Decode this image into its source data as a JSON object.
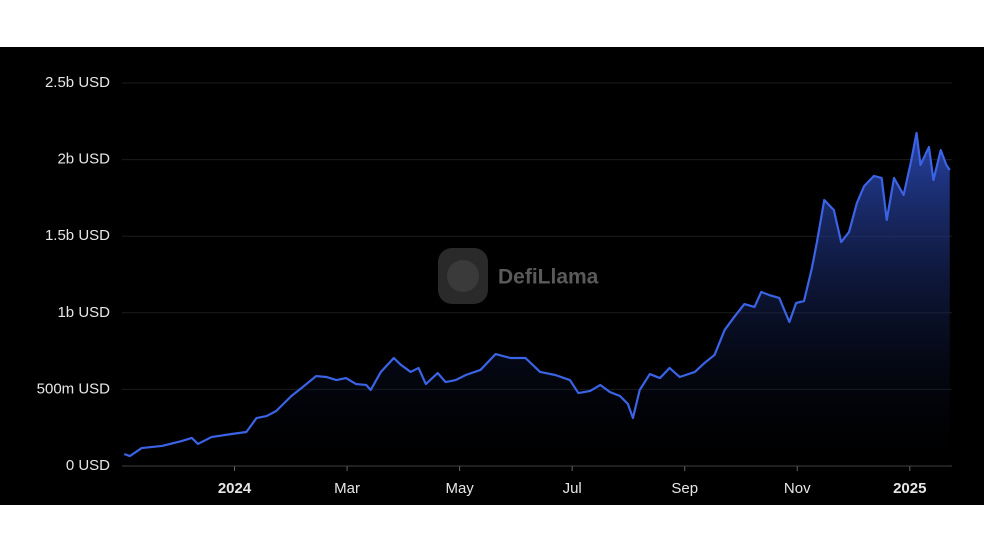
{
  "chart_data": {
    "type": "area",
    "watermark": "DefiLlama",
    "color": "#3b63e6",
    "x": [
      -1.96,
      -1.86,
      -1.65,
      -1.29,
      -0.94,
      -0.76,
      -0.65,
      -0.41,
      -0.05,
      0.21,
      0.39,
      0.57,
      0.74,
      1.01,
      1.19,
      1.45,
      1.63,
      1.81,
      1.98,
      2.16,
      2.34,
      2.42,
      2.6,
      2.83,
      2.96,
      3.13,
      3.27,
      3.4,
      3.61,
      3.75,
      3.93,
      4.11,
      4.37,
      4.64,
      4.9,
      5.17,
      5.43,
      5.7,
      5.96,
      6.11,
      6.32,
      6.5,
      6.67,
      6.85,
      6.99,
      7.08,
      7.2,
      7.38,
      7.56,
      7.73,
      7.91,
      8.18,
      8.35,
      8.53,
      8.71,
      8.88,
      9.06,
      9.24,
      9.36,
      9.5,
      9.68,
      9.86,
      9.98,
      10.12,
      10.26,
      10.35,
      10.48,
      10.65,
      10.78,
      10.92,
      11.06,
      11.19,
      11.36,
      11.5,
      11.59,
      11.72,
      11.89,
      12.02,
      12.12,
      12.19,
      12.34,
      12.42,
      12.55,
      12.65,
      12.71
    ],
    "values": [
      78000000,
      65000000,
      117000000,
      131000000,
      163000000,
      183000000,
      144000000,
      189000000,
      209000000,
      222000000,
      313000000,
      326000000,
      359000000,
      457000000,
      509000000,
      587000000,
      581000000,
      561000000,
      574000000,
      535000000,
      529000000,
      496000000,
      614000000,
      705000000,
      659000000,
      614000000,
      640000000,
      535000000,
      607000000,
      548000000,
      561000000,
      594000000,
      627000000,
      731000000,
      705000000,
      705000000,
      614000000,
      594000000,
      561000000,
      476000000,
      490000000,
      529000000,
      483000000,
      457000000,
      405000000,
      313000000,
      496000000,
      600000000,
      574000000,
      640000000,
      581000000,
      614000000,
      672000000,
      725000000,
      888000000,
      973000000,
      1057000000,
      1038000000,
      1136000000,
      1116000000,
      1097000000,
      940000000,
      1064000000,
      1077000000,
      1292000000,
      1462000000,
      1736000000,
      1671000000,
      1462000000,
      1527000000,
      1717000000,
      1828000000,
      1893000000,
      1880000000,
      1606000000,
      1880000000,
      1769000000,
      1984000000,
      2174000000,
      1965000000,
      2082000000,
      1867000000,
      2062000000,
      1965000000,
      1932000000
    ],
    "xlim": [
      -2,
      12.75
    ],
    "xticks": [
      {
        "value": 0,
        "label": "2024"
      },
      {
        "value": 2,
        "label": "Mar"
      },
      {
        "value": 4,
        "label": "May"
      },
      {
        "value": 6,
        "label": "Jul"
      },
      {
        "value": 8,
        "label": "Sep"
      },
      {
        "value": 10,
        "label": "Nov"
      },
      {
        "value": 12,
        "label": "2025"
      }
    ],
    "ylim": [
      0,
      2500000000
    ],
    "yticks": [
      {
        "value": 0,
        "label": "0 USD"
      },
      {
        "value": 500000000,
        "label": "500m USD"
      },
      {
        "value": 1000000000,
        "label": "1b USD"
      },
      {
        "value": 1500000000,
        "label": "1.5b USD"
      },
      {
        "value": 2000000000,
        "label": "2b USD"
      },
      {
        "value": 2500000000,
        "label": "2.5b USD"
      }
    ],
    "grid": true
  }
}
